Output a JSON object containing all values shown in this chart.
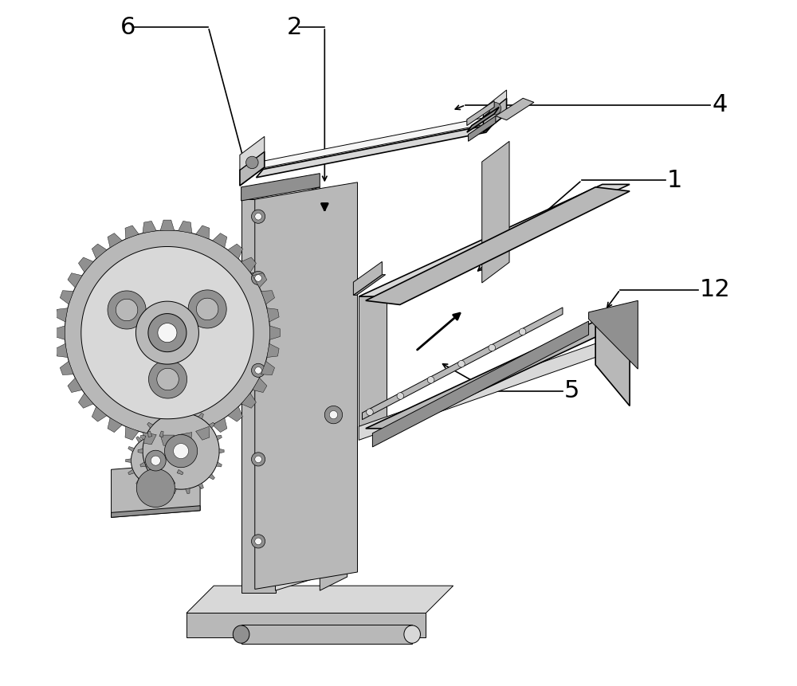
{
  "bg_color": "#ffffff",
  "line_color": "#000000",
  "gray1": "#d8d8d8",
  "gray2": "#b8b8b8",
  "gray3": "#909090",
  "gray4": "#606060",
  "white_fill": "#f5f5f5",
  "label_fontsize": 22,
  "lw_main": 1.2,
  "lw_thin": 0.7,
  "lw_leader": 1.2,
  "figsize": [
    10.0,
    8.61
  ],
  "dpi": 100
}
